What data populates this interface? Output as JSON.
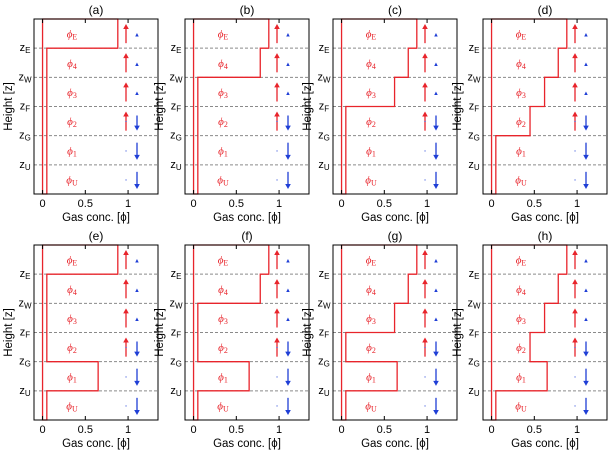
{
  "figure": {
    "y_axis_label": "Height [z]",
    "x_axis_label": "Gas conc. [ϕ]",
    "x_ticks": [
      "0",
      "0.5",
      "1"
    ],
    "x_tick_values": [
      0,
      0.5,
      1
    ],
    "x_range": [
      -0.1,
      1.35
    ],
    "layer_names": [
      "ϕ_E",
      "ϕ_4",
      "ϕ_3",
      "ϕ_2",
      "ϕ_1",
      "ϕ_U"
    ],
    "boundary_labels": [
      "z_E",
      "z_W",
      "z_F",
      "z_G",
      "z_U"
    ],
    "colors": {
      "profile": "#e8242b",
      "up_arrow": "#e8242b",
      "down_arrow": "#1f3fd6",
      "dashed": "#8a8a8a",
      "frame": "#000000"
    }
  },
  "chart_data": [
    {
      "type": "line",
      "label": "(a)",
      "layer_conc": [
        0.88,
        0.05,
        0.05,
        0.05,
        0.05,
        0.05
      ]
    },
    {
      "type": "line",
      "label": "(b)",
      "layer_conc": [
        0.88,
        0.78,
        0.05,
        0.05,
        0.05,
        0.05
      ]
    },
    {
      "type": "line",
      "label": "(c)",
      "layer_conc": [
        0.88,
        0.78,
        0.62,
        0.05,
        0.05,
        0.05
      ]
    },
    {
      "type": "line",
      "label": "(d)",
      "layer_conc": [
        0.88,
        0.78,
        0.62,
        0.45,
        0.05,
        0.05
      ]
    },
    {
      "type": "line",
      "label": "(e)",
      "layer_conc": [
        0.88,
        0.05,
        0.05,
        0.05,
        0.65,
        0.05
      ]
    },
    {
      "type": "line",
      "label": "(f)",
      "layer_conc": [
        0.88,
        0.78,
        0.05,
        0.05,
        0.65,
        0.05
      ]
    },
    {
      "type": "line",
      "label": "(g)",
      "layer_conc": [
        0.88,
        0.78,
        0.62,
        0.05,
        0.65,
        0.05
      ]
    },
    {
      "type": "line",
      "label": "(h)",
      "layer_conc": [
        0.88,
        0.78,
        0.62,
        0.45,
        0.65,
        0.05
      ]
    }
  ],
  "flow": {
    "small_symbols": [
      "▲",
      "▲",
      "▲",
      "·",
      "·",
      "·"
    ],
    "arrows": [
      "up",
      "up",
      "up",
      "up-down",
      "down",
      "down"
    ]
  }
}
